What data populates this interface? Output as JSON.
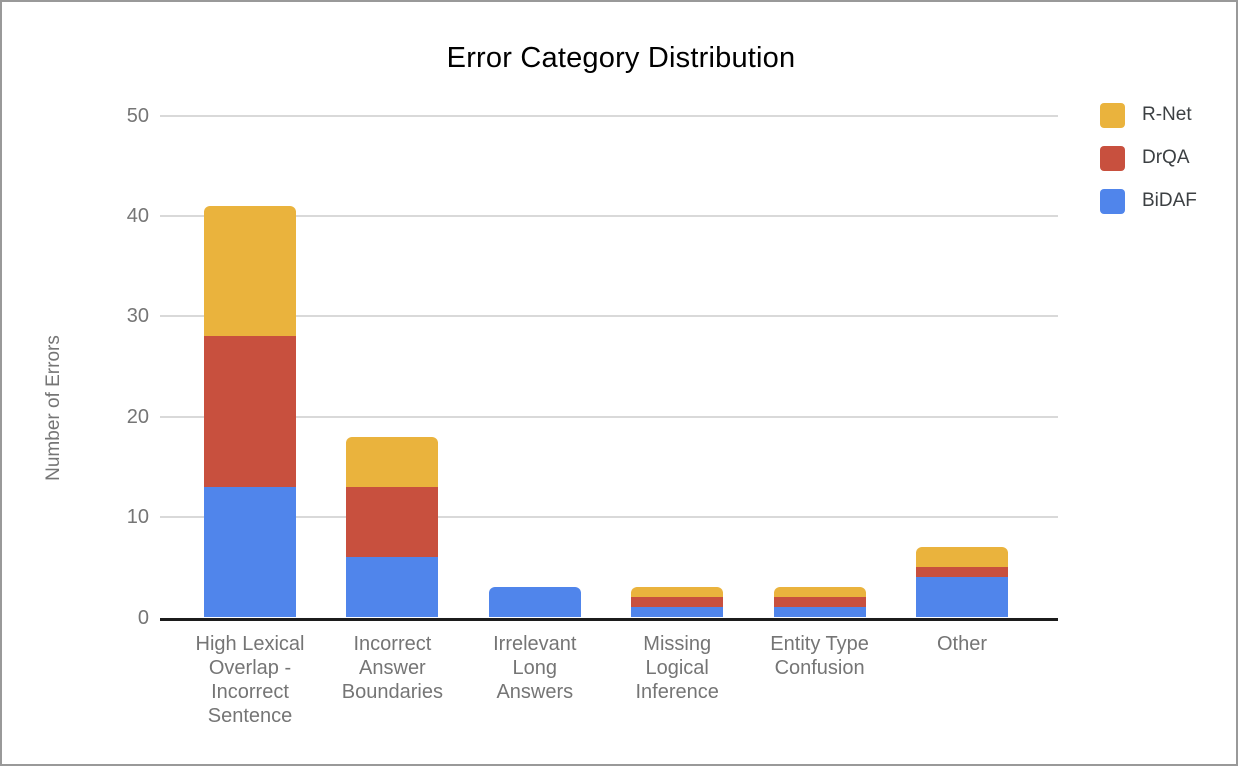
{
  "title": "Error Category Distribution",
  "chart_data": {
    "type": "bar",
    "stacked": true,
    "title": "Error Category Distribution",
    "xlabel": "",
    "ylabel": "Number of Errors",
    "ylim": [
      0,
      50
    ],
    "yticks": [
      0,
      10,
      20,
      30,
      40,
      50
    ],
    "grid": true,
    "legend_position": "top-right",
    "categories": [
      "High Lexical Overlap - Incorrect Sentence",
      "Incorrect Answer Boundaries",
      "Irrelevant Long Answers",
      "Missing Logical Inference",
      "Entity Type Confusion",
      "Other"
    ],
    "category_label_lines": [
      [
        "High Lexical",
        "Overlap -",
        "Incorrect",
        "Sentence"
      ],
      [
        "Incorrect",
        "Answer",
        "Boundaries"
      ],
      [
        "Irrelevant",
        "Long",
        "Answers"
      ],
      [
        "Missing",
        "Logical",
        "Inference"
      ],
      [
        "Entity Type",
        "Confusion"
      ],
      [
        "Other"
      ]
    ],
    "series": [
      {
        "name": "BiDAF",
        "color": "#5085EB",
        "values": [
          13,
          6,
          3,
          1,
          1,
          4
        ]
      },
      {
        "name": "DrQA",
        "color": "#C8503E",
        "values": [
          15,
          7,
          0,
          1,
          1,
          1
        ]
      },
      {
        "name": "R-Net",
        "color": "#EAB33D",
        "values": [
          13,
          5,
          0,
          1,
          1,
          2
        ]
      }
    ],
    "stack_totals": [
      41,
      18,
      3,
      3,
      3,
      7
    ],
    "legend_order": [
      "R-Net",
      "DrQA",
      "BiDAF"
    ]
  },
  "style_colors": {
    "grid": "#d9d9d9",
    "axis": "#1c1c1c",
    "tick_text": "#757575",
    "axis_title_text": "#757575",
    "legend_text": "#3c4043",
    "title_text": "#000000",
    "frame_border": "#999999",
    "background": "#ffffff"
  }
}
